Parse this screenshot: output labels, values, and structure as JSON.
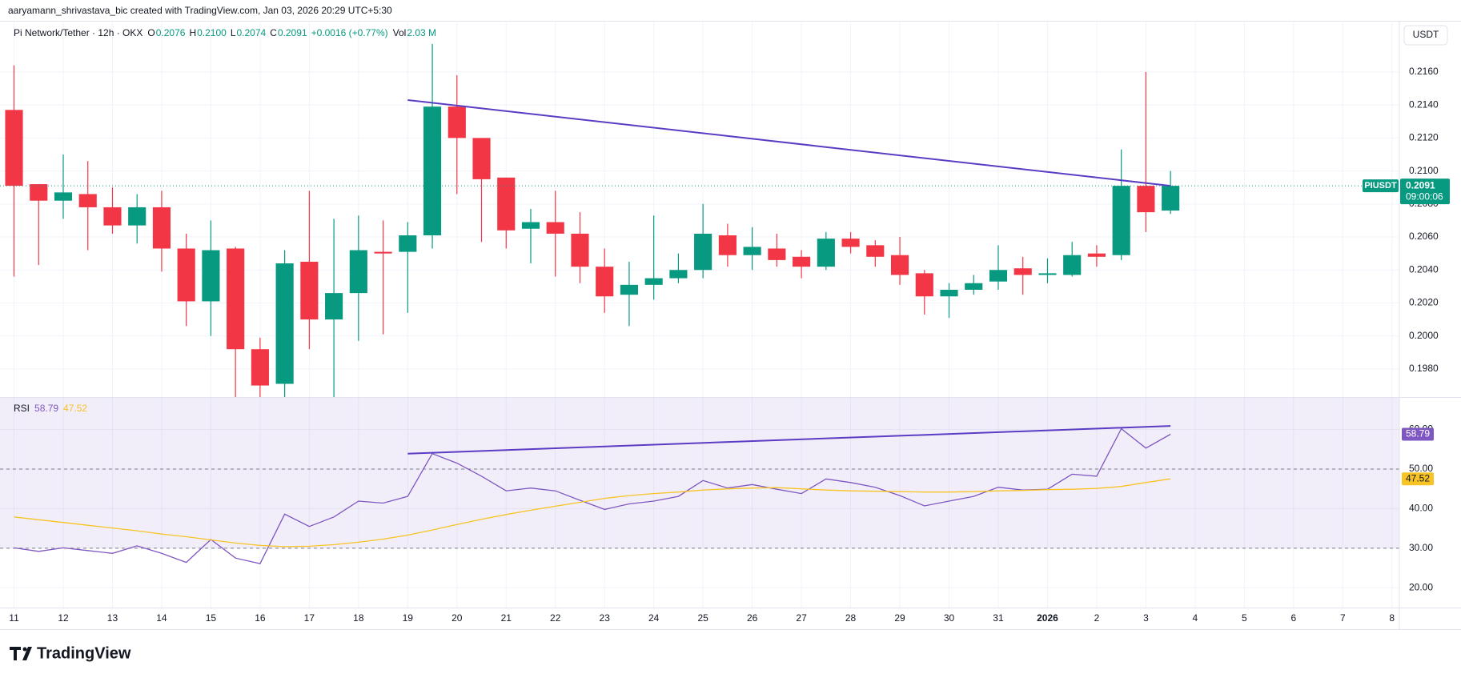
{
  "credit": "aaryamann_shrivastava_bic created with TradingView.com, Jan 03, 2026 20:29 UTC+5:30",
  "brand": "TradingView",
  "chart_data": {
    "type": "candlestick",
    "title": "Pi Network/Tether · 12h · OKX",
    "legend": [
      {
        "label": "O",
        "text": "0.2076"
      },
      {
        "label": "H",
        "text": "0.2100"
      },
      {
        "label": "L",
        "text": "0.2074"
      },
      {
        "label": "C",
        "text": "0.2091"
      }
    ],
    "change": "+0.0016 (+0.77%)",
    "volume_label": "Vol",
    "volume": "2.03 M",
    "currency": "USDT",
    "symbol": "PIUSDT",
    "countdown": "09:00:06",
    "up_color": "#089981",
    "down_color": "#f23645",
    "grid": true,
    "categories": [
      "11",
      null,
      "12",
      null,
      "13",
      null,
      "14",
      null,
      "15",
      null,
      "16",
      null,
      "17",
      null,
      "18",
      null,
      "19",
      null,
      "20",
      null,
      "21",
      null,
      "22",
      null,
      "23",
      null,
      "24",
      null,
      "25",
      null,
      "26",
      null,
      "27",
      null,
      "28",
      null,
      "29",
      null,
      "30",
      null,
      "31",
      null,
      "2026",
      null,
      "2",
      null,
      "3",
      null,
      "4",
      null,
      "5",
      null,
      "6",
      null,
      "7",
      null,
      "8"
    ],
    "open": [
      0.2137,
      0.2092,
      0.2082,
      0.2086,
      0.2078,
      0.2067,
      0.2078,
      0.2053,
      0.2021,
      0.2053,
      0.1992,
      0.1971,
      0.2045,
      0.201,
      0.2026,
      0.2051,
      0.2051,
      0.2061,
      0.2139,
      0.212,
      0.2096,
      0.2065,
      0.2069,
      0.2062,
      0.2042,
      0.2025,
      0.2031,
      0.2035,
      0.204,
      0.2061,
      0.2049,
      0.2053,
      0.2048,
      0.2042,
      0.2059,
      0.2055,
      0.2049,
      0.2038,
      0.2024,
      0.2028,
      0.2033,
      0.2041,
      0.2037,
      0.2037,
      0.205,
      0.2049,
      0.2091,
      0.2076,
      null,
      null,
      null,
      null,
      null,
      null,
      null,
      null,
      null
    ],
    "high": [
      0.2164,
      0.2092,
      0.211,
      0.2106,
      0.209,
      0.2086,
      0.2088,
      0.2062,
      0.207,
      0.2054,
      0.1999,
      0.2052,
      0.2088,
      0.2071,
      0.2073,
      0.207,
      0.2069,
      0.2177,
      0.2158,
      0.212,
      0.2096,
      0.2077,
      0.2088,
      0.2075,
      0.2053,
      0.2045,
      0.2073,
      0.205,
      0.208,
      0.2068,
      0.2066,
      0.2062,
      0.2052,
      0.2063,
      0.2063,
      0.2058,
      0.206,
      0.204,
      0.2032,
      0.2037,
      0.2055,
      0.2048,
      0.2047,
      0.2057,
      0.2055,
      0.2113,
      0.216,
      0.21,
      null,
      null,
      null,
      null,
      null,
      null,
      null,
      null,
      null
    ],
    "low": [
      0.2036,
      0.2043,
      0.2071,
      0.2052,
      0.2062,
      0.2056,
      0.2039,
      0.2006,
      0.2,
      0.1962,
      0.196,
      0.196,
      0.1992,
      0.1962,
      0.1997,
      0.2001,
      0.2014,
      0.2053,
      0.2086,
      0.2057,
      0.2053,
      0.2044,
      0.2036,
      0.2032,
      0.2014,
      0.2006,
      0.2022,
      0.2032,
      0.2035,
      0.2042,
      0.204,
      0.2042,
      0.2035,
      0.204,
      0.205,
      0.2042,
      0.2031,
      0.2013,
      0.2011,
      0.2025,
      0.2028,
      0.2025,
      0.2032,
      0.2036,
      0.2042,
      0.2046,
      0.2063,
      0.2074,
      null,
      null,
      null,
      null,
      null,
      null,
      null,
      null,
      null
    ],
    "close": [
      0.2091,
      0.2082,
      0.2087,
      0.2078,
      0.2067,
      0.2078,
      0.2053,
      0.2021,
      0.2052,
      0.1992,
      0.197,
      0.2044,
      0.201,
      0.2026,
      0.2052,
      0.205,
      0.2061,
      0.2139,
      0.212,
      0.2095,
      0.2064,
      0.2069,
      0.2062,
      0.2042,
      0.2024,
      0.2031,
      0.2035,
      0.204,
      0.2062,
      0.2049,
      0.2054,
      0.2046,
      0.2042,
      0.2059,
      0.2054,
      0.2048,
      0.2037,
      0.2024,
      0.2028,
      0.2032,
      0.204,
      0.2037,
      0.2038,
      0.2049,
      0.2048,
      0.2091,
      0.2075,
      0.2091,
      null,
      null,
      null,
      null,
      null,
      null,
      null,
      null,
      null
    ],
    "xlim": [
      -0.57,
      56.3
    ],
    "ylim": [
      0.1963,
      0.2191
    ],
    "yticks": [
      {
        "value": 0.198,
        "label": "0.1980"
      },
      {
        "value": 0.2,
        "label": "0.2000"
      },
      {
        "value": 0.202,
        "label": "0.2020"
      },
      {
        "value": 0.204,
        "label": "0.2040"
      },
      {
        "value": 0.206,
        "label": "0.2060"
      },
      {
        "value": 0.208,
        "label": "0.2080"
      },
      {
        "value": 0.21,
        "label": "0.2100"
      },
      {
        "value": 0.212,
        "label": "0.2120"
      },
      {
        "value": 0.214,
        "label": "0.2140"
      },
      {
        "value": 0.216,
        "label": "0.2160"
      }
    ],
    "trendline": {
      "x": [
        16,
        47
      ],
      "y": [
        0.2143,
        0.2091
      ],
      "color": "#5b3cc4"
    },
    "indicator": {
      "type": "line",
      "title": "RSI",
      "ylim": [
        15,
        68
      ],
      "yticks": [
        {
          "value": 20,
          "label": "20.00"
        },
        {
          "value": 30,
          "label": "30.00"
        },
        {
          "value": 40,
          "label": "40.00"
        },
        {
          "value": 50,
          "label": "50.00"
        },
        {
          "value": 60,
          "label": "60.00"
        }
      ],
      "bands": [
        70,
        50,
        30
      ],
      "band_color": "#7e57c2",
      "series": [
        {
          "color": "#7e57c2",
          "values": [
            30.1,
            29.2,
            30.1,
            29.4,
            28.7,
            30.6,
            28.7,
            26.4,
            32.2,
            27.5,
            26.1,
            38.6,
            35.5,
            37.9,
            41.9,
            41.4,
            43.1,
            53.9,
            51.5,
            48.2,
            44.5,
            45.2,
            44.5,
            42.1,
            39.8,
            41.2,
            41.9,
            43.1,
            47.1,
            45.2,
            46.1,
            44.9,
            43.8,
            47.5,
            46.6,
            45.4,
            43.3,
            40.7,
            41.9,
            43.1,
            45.4,
            44.7,
            44.9,
            48.7,
            48.2,
            60.2,
            55.3,
            58.79,
            null,
            null,
            null,
            null,
            null,
            null,
            null,
            null,
            null
          ]
        },
        {
          "color": "#f7c325",
          "values": [
            37.9,
            37.2,
            36.5,
            35.8,
            35.1,
            34.4,
            33.6,
            32.9,
            32.1,
            31.3,
            30.7,
            30.4,
            30.5,
            30.9,
            31.5,
            32.3,
            33.3,
            34.6,
            36.0,
            37.3,
            38.5,
            39.6,
            40.6,
            41.6,
            42.6,
            43.3,
            43.8,
            44.2,
            44.7,
            45.0,
            45.2,
            45.3,
            45.0,
            44.7,
            44.5,
            44.4,
            44.3,
            44.2,
            44.2,
            44.3,
            44.5,
            44.6,
            44.8,
            44.9,
            45.1,
            45.6,
            46.6,
            47.52,
            null,
            null,
            null,
            null,
            null,
            null,
            null,
            null,
            null
          ]
        }
      ],
      "trendline": {
        "x": [
          16,
          47
        ],
        "y": [
          53.9,
          60.9
        ],
        "color": "#5b3cc4"
      }
    }
  }
}
